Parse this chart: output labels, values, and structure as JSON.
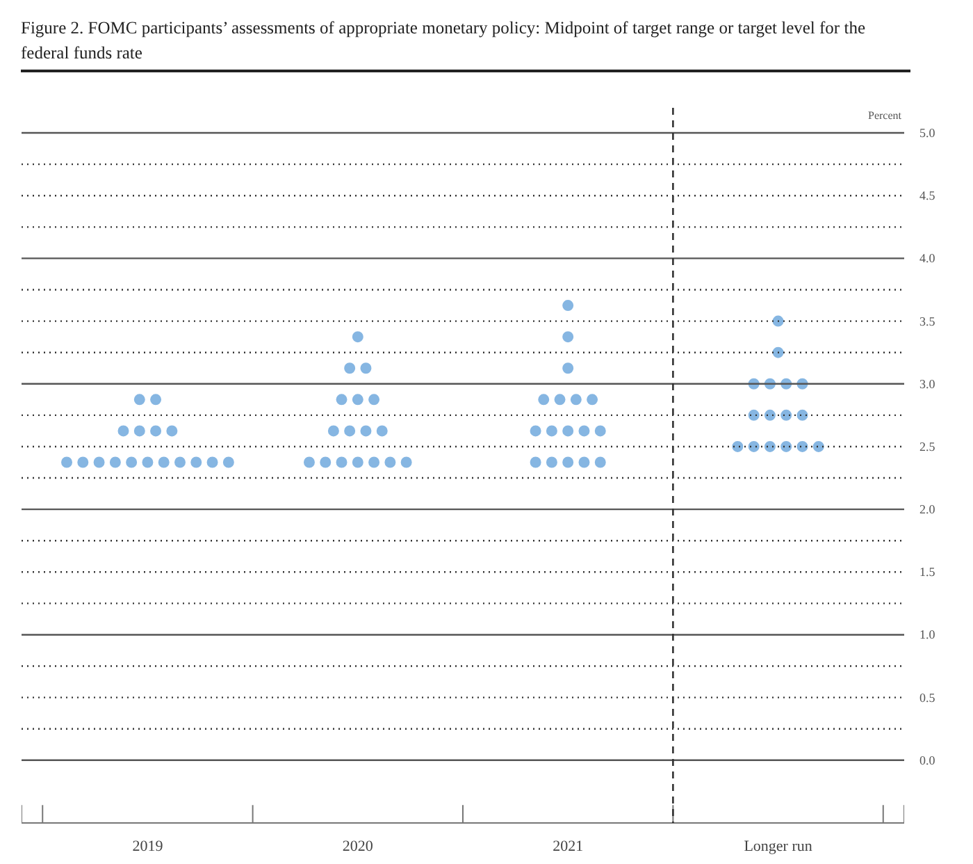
{
  "chart_data": {
    "type": "scatter",
    "title": "Figure 2. FOMC participants’ assessments of appropriate monetary policy: Midpoint of target range or target level for the federal funds rate",
    "ylabel": "Percent",
    "categories": [
      "2019",
      "2020",
      "2021",
      "Longer run"
    ],
    "series": [
      {
        "color": "#86b6e2",
        "values": [
          2.375,
          2.375,
          2.375,
          2.5
        ]
      },
      {
        "color": "#86b6e2",
        "values": [
          2.375,
          2.375,
          2.375,
          2.5
        ]
      },
      {
        "color": "#86b6e2",
        "values": [
          2.375,
          2.375,
          2.375,
          2.5
        ]
      },
      {
        "color": "#86b6e2",
        "values": [
          2.375,
          2.375,
          2.375,
          2.5
        ]
      },
      {
        "color": "#86b6e2",
        "values": [
          2.375,
          2.375,
          2.375,
          2.5
        ]
      },
      {
        "color": "#86b6e2",
        "values": [
          2.375,
          2.375,
          2.625,
          2.5
        ]
      },
      {
        "color": "#86b6e2",
        "values": [
          2.375,
          2.375,
          2.625,
          2.75
        ]
      },
      {
        "color": "#86b6e2",
        "values": [
          2.375,
          2.625,
          2.625,
          2.75
        ]
      },
      {
        "color": "#86b6e2",
        "values": [
          2.375,
          2.625,
          2.625,
          2.75
        ]
      },
      {
        "color": "#86b6e2",
        "values": [
          2.375,
          2.625,
          2.625,
          2.75
        ]
      },
      {
        "color": "#86b6e2",
        "values": [
          2.375,
          2.625,
          2.875,
          3.0
        ]
      },
      {
        "color": "#86b6e2",
        "values": [
          2.625,
          2.875,
          2.875,
          3.0
        ]
      },
      {
        "color": "#86b6e2",
        "values": [
          2.625,
          2.875,
          2.875,
          3.0
        ]
      },
      {
        "color": "#86b6e2",
        "values": [
          2.625,
          2.875,
          2.875,
          3.0
        ]
      },
      {
        "color": "#86b6e2",
        "values": [
          2.625,
          3.125,
          3.125,
          3.25
        ]
      },
      {
        "color": "#86b6e2",
        "values": [
          2.875,
          3.125,
          3.375,
          3.5
        ]
      },
      {
        "color": "#86b6e2",
        "values": [
          2.875,
          3.375,
          3.625,
          null
        ]
      }
    ],
    "ylim": [
      -0.5,
      5.2
    ],
    "yticks": [
      {
        "value": 0,
        "label": "0.0"
      },
      {
        "value": 0.25,
        "label": null
      },
      {
        "value": 0.5,
        "label": "0.5"
      },
      {
        "value": 0.75,
        "label": null
      },
      {
        "value": 1,
        "label": "1.0"
      },
      {
        "value": 1.25,
        "label": null
      },
      {
        "value": 1.5,
        "label": "1.5"
      },
      {
        "value": 1.75,
        "label": null
      },
      {
        "value": 2,
        "label": "2.0"
      },
      {
        "value": 2.25,
        "label": null
      },
      {
        "value": 2.5,
        "label": "2.5"
      },
      {
        "value": 2.75,
        "label": null
      },
      {
        "value": 3,
        "label": "3.0"
      },
      {
        "value": 3.25,
        "label": null
      },
      {
        "value": 3.5,
        "label": "3.5"
      },
      {
        "value": 3.75,
        "label": null
      },
      {
        "value": 4,
        "label": "4.0"
      },
      {
        "value": 4.25,
        "label": null
      },
      {
        "value": 4.5,
        "label": "4.5"
      },
      {
        "value": 4.75,
        "label": null
      },
      {
        "value": 5,
        "label": "5.0"
      }
    ],
    "grid": "y",
    "marker": "circle"
  }
}
